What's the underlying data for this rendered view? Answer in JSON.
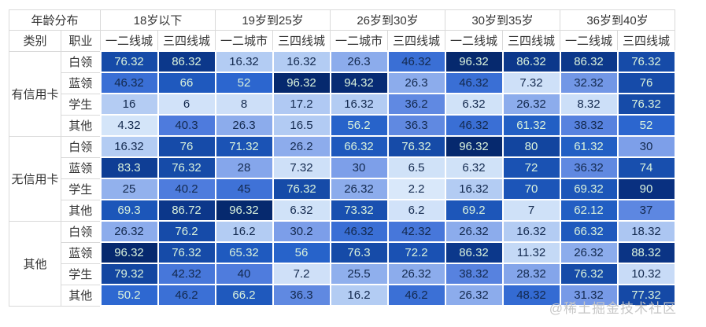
{
  "header": {
    "corner": "年龄分布",
    "category": "类别",
    "occupation": "职业",
    "age_groups": [
      {
        "label": "18岁以下",
        "cities": [
          "一二线城",
          "三四线城"
        ]
      },
      {
        "label": "19岁到25岁",
        "cities": [
          "一二城市",
          "三四线城"
        ]
      },
      {
        "label": "26岁到30岁",
        "cities": [
          "一二城市",
          "三四线城"
        ]
      },
      {
        "label": "30岁到35岁",
        "cities": [
          "一二线城",
          "三四线城"
        ]
      },
      {
        "label": "36岁到40岁",
        "cities": [
          "一二线城",
          "三四线城"
        ]
      }
    ]
  },
  "chart_data": {
    "type": "heatmap",
    "title": "年龄分布",
    "column_groups": [
      "18岁以下",
      "19岁到25岁",
      "26岁到30岁",
      "30岁到35岁",
      "36岁到40岁"
    ],
    "columns": [
      "一二线城",
      "三四线城",
      "一二城市",
      "三四线城",
      "一二城市",
      "三四线城",
      "一二线城",
      "三四线城",
      "一二线城",
      "三四线城"
    ],
    "value_range": [
      0,
      100
    ],
    "row_groups": [
      {
        "label": "有信用卡",
        "rows": [
          {
            "label": "白领",
            "values": [
              76.32,
              86.32,
              16.32,
              16.32,
              26.3,
              46.32,
              96.32,
              86.32,
              86.32,
              76.32
            ]
          },
          {
            "label": "蓝领",
            "values": [
              46.32,
              66,
              52,
              96.32,
              94.32,
              26.3,
              46.32,
              7.32,
              32.32,
              76
            ]
          },
          {
            "label": "学生",
            "values": [
              16,
              6,
              8,
              17.2,
              16.32,
              36.2,
              6.32,
              26.32,
              8.32,
              76.32
            ]
          },
          {
            "label": "其他",
            "values": [
              4.32,
              40.3,
              26.3,
              16.5,
              56.2,
              36.3,
              46.32,
              61.32,
              38.32,
              52
            ]
          }
        ]
      },
      {
        "label": "无信用卡",
        "rows": [
          {
            "label": "白领",
            "values": [
              16.32,
              76,
              71.32,
              26.2,
              66.32,
              76.32,
              96.32,
              80,
              61.32,
              30
            ]
          },
          {
            "label": "蓝领",
            "values": [
              83.3,
              76.32,
              28,
              7.32,
              30,
              6.5,
              6.32,
              72,
              36.32,
              74
            ]
          },
          {
            "label": "学生",
            "values": [
              25,
              40.2,
              45,
              76.32,
              26.32,
              2.2,
              16.32,
              70,
              69.32,
              90
            ]
          },
          {
            "label": "其他",
            "values": [
              69.3,
              86.72,
              96.32,
              6.32,
              73.32,
              6.2,
              69.2,
              7,
              62.12,
              37
            ]
          }
        ]
      },
      {
        "label": "其他",
        "rows": [
          {
            "label": "白领",
            "values": [
              26.32,
              76.2,
              16.2,
              30.2,
              46.32,
              42.32,
              26.32,
              16.32,
              66.32,
              18.32
            ]
          },
          {
            "label": "蓝领",
            "values": [
              96.32,
              76.32,
              65.32,
              56,
              76.3,
              72.2,
              86.32,
              11.32,
              26.32,
              88.32
            ]
          },
          {
            "label": "学生",
            "values": [
              79.32,
              42.32,
              40,
              7.2,
              25.5,
              26.32,
              38.32,
              28.32,
              76.32,
              10.32
            ]
          },
          {
            "label": "其他",
            "values": [
              50.2,
              46.2,
              66.2,
              36.3,
              16.2,
              46.2,
              26.32,
              48.32,
              31.32,
              77.32
            ]
          }
        ]
      }
    ],
    "palette": {
      "color_stops": [
        [
          0,
          "#ddecfb"
        ],
        [
          10,
          "#c9dcf7"
        ],
        [
          20,
          "#a6c2f1"
        ],
        [
          30,
          "#7d9fe9"
        ],
        [
          40,
          "#4f7cdd"
        ],
        [
          50,
          "#2e68d1"
        ],
        [
          60,
          "#2360c6"
        ],
        [
          70,
          "#1c55b8"
        ],
        [
          80,
          "#12459f"
        ],
        [
          90,
          "#093080"
        ],
        [
          100,
          "#052564"
        ]
      ],
      "light_text_threshold": 50,
      "light_text_color": "#daf2dc",
      "dark_text_color": "#13294e"
    }
  },
  "watermark": "@稀土掘金技术社区"
}
